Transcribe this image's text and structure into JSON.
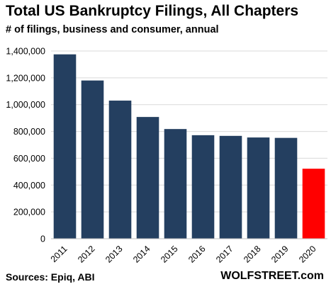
{
  "header": {
    "title": "Total US Bankruptcy Filings, All Chapters",
    "subtitle": "# of filings, business and consumer, annual"
  },
  "footer": {
    "source": "Sources: Epiq, ABI",
    "credit": "WOLFSTREET.com"
  },
  "colors": {
    "bar": "#243F60",
    "highlight": "#FF0000",
    "gridline": "#D9D9D9"
  },
  "chart_data": {
    "type": "bar",
    "title": "Total US Bankruptcy Filings, All Chapters",
    "subtitle": "# of filings, business and consumer, annual",
    "xlabel": "",
    "ylabel": "",
    "categories": [
      "2011",
      "2012",
      "2013",
      "2014",
      "2015",
      "2016",
      "2017",
      "2018",
      "2019",
      "2020"
    ],
    "series": [
      {
        "values": [
          1375000,
          1180000,
          1030000,
          908000,
          818000,
          772000,
          767000,
          755000,
          752000,
          522000
        ]
      }
    ],
    "highlight_category": "2020",
    "ylim": [
      0,
      1400000
    ],
    "yticks": [
      0,
      200000,
      400000,
      600000,
      800000,
      1000000,
      1200000,
      1400000
    ],
    "ytick_labels": [
      "0",
      "200,000",
      "400,000",
      "600,000",
      "800,000",
      "1,000,000",
      "1,200,000",
      "1,400,000"
    ],
    "grid": true,
    "legend": "none"
  }
}
